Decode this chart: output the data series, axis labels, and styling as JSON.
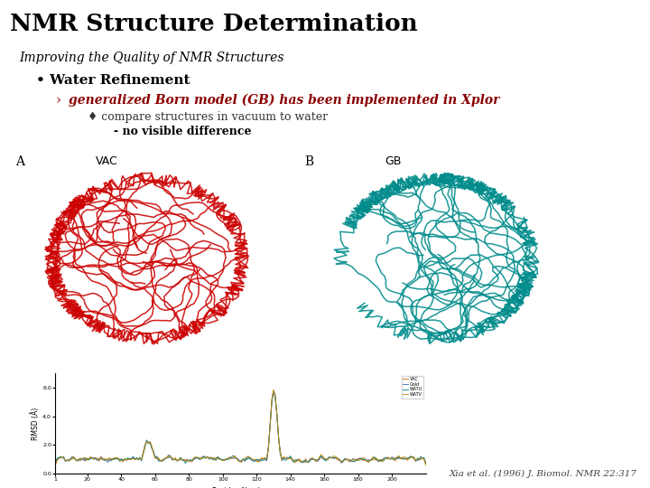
{
  "title": "NMR Structure Determination",
  "subtitle": "Improving the Quality of NMR Structures",
  "bullet1": "Water Refinement",
  "arrow1_text": "generalized Born model (GB) has been implemented in Xplor",
  "bullet2_text": "compare structures in vacuum to water",
  "bullet2_sub": "- no visible difference",
  "citation": "Xia et al. (1996) J. Biomol. NMR 22:317",
  "bg_color": "#ffffff",
  "title_color": "#000000",
  "subtitle_color": "#000000",
  "bullet1_color": "#000000",
  "arrow1_color": "#8b0000",
  "bullet2_color": "#333333",
  "bullet2_sub_color": "#000000",
  "citation_color": "#444444",
  "vac_color": "#cc0000",
  "gb_color": "#008B8B",
  "line_colors": [
    "#cc6600",
    "#4472c4",
    "#008B8B",
    "#cc8800"
  ],
  "line_labels": [
    "VAC",
    "Gold",
    "WATU",
    "WATV"
  ],
  "yticks": [
    0.0,
    2.0,
    4.0,
    6.0
  ],
  "ytick_labels": [
    "0.0",
    "2.0",
    "4.0",
    "6.0"
  ],
  "xticks": [
    1,
    20,
    40,
    60,
    80,
    100,
    120,
    140,
    160,
    180,
    200
  ],
  "xtick_labels": [
    "1",
    "20",
    "40",
    "60",
    "80",
    "100",
    "120",
    "140",
    "160",
    "180",
    "200"
  ]
}
